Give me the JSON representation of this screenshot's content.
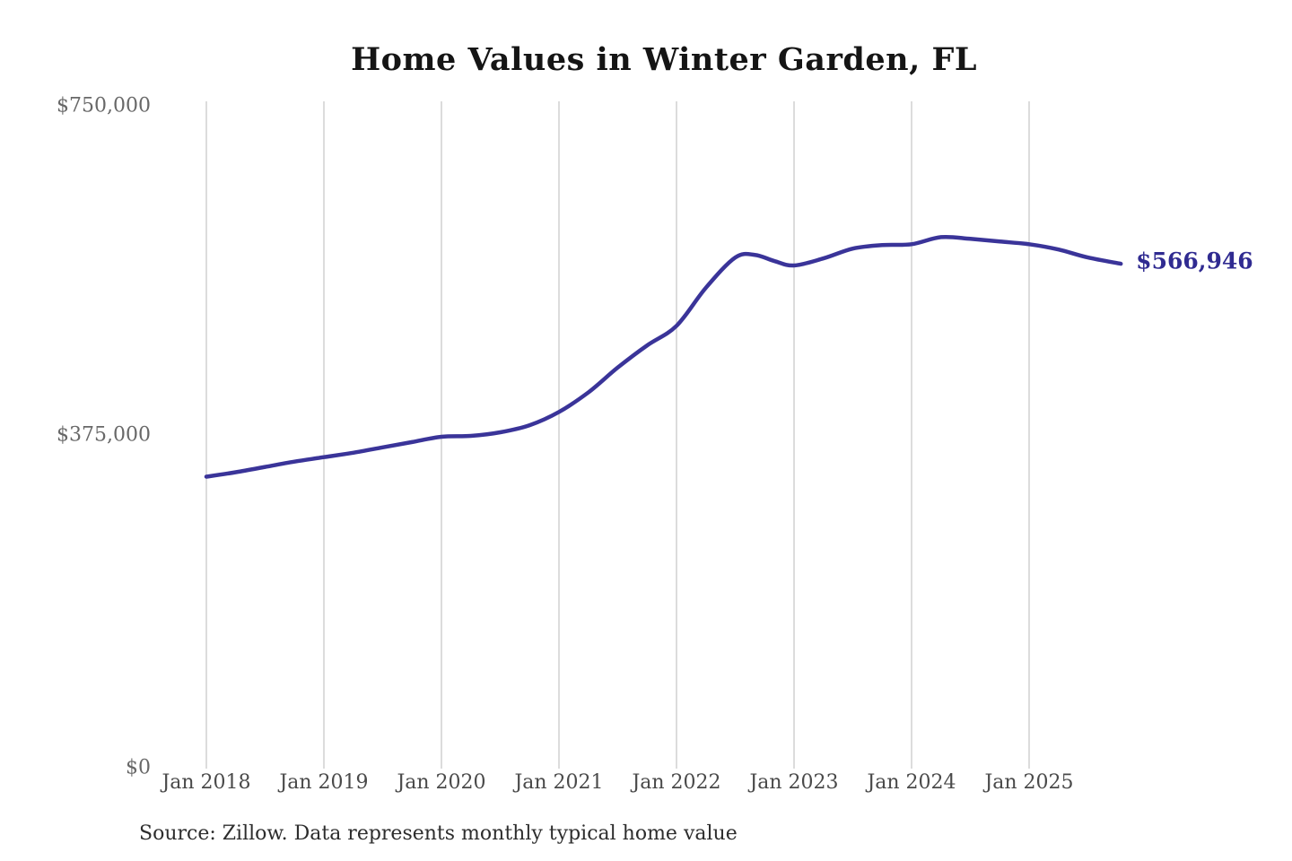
{
  "title": "Home Values in Winter Garden, FL",
  "source_note": "Source: Zillow. Data represents monthly typical home value",
  "end_value_label": "$566,946",
  "colors": {
    "line": "#3a3499",
    "end_label": "#302b91",
    "grid": "#c9c9c9",
    "y_tick_text": "#686868",
    "x_tick_text": "#4a4a4a",
    "title_text": "#151515",
    "source_text": "#2d2d2d",
    "background": "#ffffff"
  },
  "y_axis": {
    "ticks": [
      {
        "label": "$750,000",
        "value": 750000
      },
      {
        "label": "$375,000",
        "value": 375000
      },
      {
        "label": "$0",
        "value": 0
      }
    ]
  },
  "x_axis": {
    "labels": [
      "Jan 2018",
      "Jan 2019",
      "Jan 2020",
      "Jan 2021",
      "Jan 2022",
      "Jan 2023",
      "Jan 2024",
      "Jan 2025"
    ]
  },
  "chart_data": {
    "type": "line",
    "title": "Home Values in Winter Garden, FL",
    "series_name": "Monthly typical home value (Zillow)",
    "xlabel": "",
    "ylabel": "",
    "ylim": [
      0,
      750000
    ],
    "xlim_years": [
      2018.0,
      2025.95
    ],
    "grid": "vertical-only",
    "legend": "none",
    "y_tick_values": [
      0,
      375000,
      750000
    ],
    "x_tick_years": [
      2018,
      2019,
      2020,
      2021,
      2022,
      2023,
      2024,
      2025
    ],
    "end_label": "$566,946",
    "end_value": 566946,
    "dates": [
      "Jan 2018",
      "Apr 2018",
      "Jul 2018",
      "Oct 2018",
      "Jan 2019",
      "Apr 2019",
      "Jul 2019",
      "Oct 2019",
      "Jan 2020",
      "Apr 2020",
      "Jul 2020",
      "Oct 2020",
      "Jan 2021",
      "Apr 2021",
      "Jul 2021",
      "Oct 2021",
      "Jan 2022",
      "Apr 2022",
      "Jul 2022",
      "Sep 2022",
      "Nov 2022",
      "Jan 2023",
      "Apr 2023",
      "Jul 2023",
      "Oct 2023",
      "Jan 2024",
      "Apr 2024",
      "Jul 2024",
      "Oct 2024",
      "Jan 2025",
      "Apr 2025",
      "Jul 2025",
      "Oct 2025"
    ],
    "x": [
      2018.0,
      2018.25,
      2018.5,
      2018.75,
      2019.0,
      2019.25,
      2019.5,
      2019.75,
      2020.0,
      2020.25,
      2020.5,
      2020.75,
      2021.0,
      2021.25,
      2021.5,
      2021.75,
      2022.0,
      2022.25,
      2022.5,
      2022.667,
      2022.833,
      2023.0,
      2023.25,
      2023.5,
      2023.75,
      2024.0,
      2024.25,
      2024.5,
      2024.75,
      2025.0,
      2025.25,
      2025.5,
      2025.78
    ],
    "values": [
      327000,
      332000,
      338000,
      344000,
      349000,
      354000,
      360000,
      366000,
      372000,
      373000,
      377000,
      385000,
      400000,
      422000,
      450000,
      475000,
      497000,
      540000,
      574000,
      577000,
      570000,
      565000,
      573000,
      584000,
      588000,
      589000,
      597000,
      595000,
      592000,
      589000,
      583000,
      574000,
      566946
    ]
  }
}
